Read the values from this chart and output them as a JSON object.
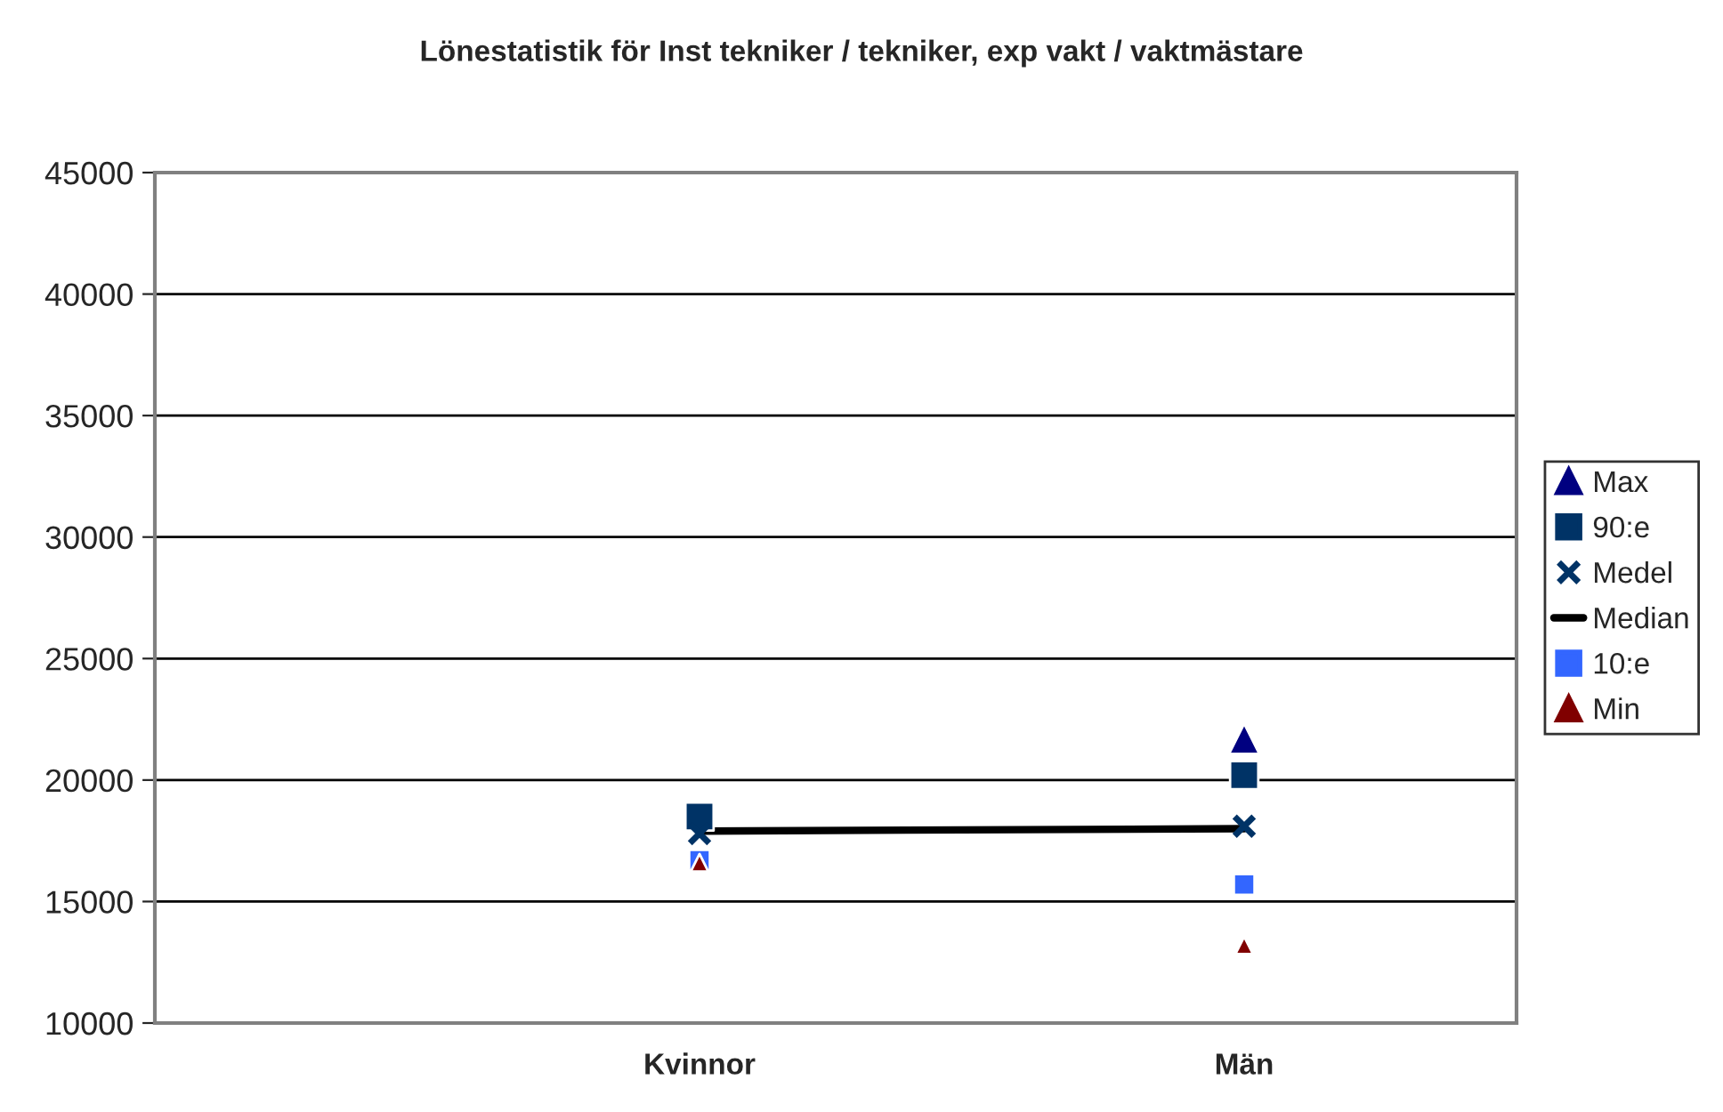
{
  "chart_data": {
    "type": "scatter",
    "title": "Lönestatistik för Inst tekniker / tekniker, exp vakt / vaktmästare",
    "categories": [
      null,
      null,
      "Kvinnor",
      null,
      "Män",
      null
    ],
    "series": [
      {
        "name": "Max",
        "marker": "triangle",
        "color": "#000080",
        "values": [
          null,
          null,
          null,
          null,
          21700,
          null
        ]
      },
      {
        "name": "90:e",
        "marker": "square",
        "color": "#003366",
        "values": [
          null,
          null,
          18500,
          null,
          20200,
          null
        ]
      },
      {
        "name": "Medel",
        "marker": "cross",
        "color": "#003366",
        "values": [
          null,
          null,
          17800,
          null,
          18100,
          null
        ]
      },
      {
        "name": "Median",
        "type": "line",
        "marker": "none",
        "color": "#000000",
        "values": [
          null,
          null,
          17900,
          null,
          18000,
          null
        ]
      },
      {
        "name": "10:e",
        "marker": "square",
        "color": "#3366ff",
        "values": [
          null,
          null,
          16700,
          null,
          15700,
          null
        ]
      },
      {
        "name": "Min",
        "marker": "triangle",
        "color": "#800000",
        "values": [
          null,
          null,
          16600,
          null,
          13200,
          null
        ]
      }
    ],
    "ylim": [
      10000,
      45000
    ],
    "yticks": [
      10000,
      15000,
      20000,
      25000,
      30000,
      35000,
      40000,
      45000
    ],
    "grid": "y",
    "legend": "right"
  }
}
